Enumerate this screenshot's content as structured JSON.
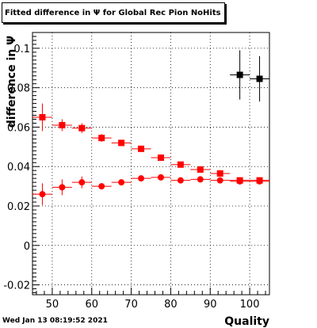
{
  "timestamp": "Wed Jan 13 08:19:52 2021",
  "chart_data": {
    "type": "scatter",
    "title": "Fitted difference in  Ψ  for Global Rec Pion NoHits",
    "xlabel": "Quality",
    "ylabel": "difference in Ψ",
    "xlim": [
      45,
      105
    ],
    "ylim": [
      -0.025,
      0.108
    ],
    "xticks": [
      50,
      60,
      70,
      80,
      90,
      100
    ],
    "yticks": [
      -0.02,
      0,
      0.02,
      0.04,
      0.06,
      0.08,
      0.1
    ],
    "ytick_labels": [
      "-0.02",
      "0",
      "0.02",
      "0.04",
      "0.06",
      "0.08",
      "0.1"
    ],
    "grid": true,
    "series": [
      {
        "marker": "square",
        "color": "#ff0000",
        "points": [
          {
            "x": 47.5,
            "y": 0.065,
            "yerr": 0.007
          },
          {
            "x": 52.5,
            "y": 0.061,
            "yerr": 0.003
          },
          {
            "x": 57.5,
            "y": 0.0595,
            "yerr": 0.0025
          },
          {
            "x": 62.5,
            "y": 0.0545,
            "yerr": 0.002
          },
          {
            "x": 67.5,
            "y": 0.052,
            "yerr": 0.0015
          },
          {
            "x": 72.5,
            "y": 0.049,
            "yerr": 0.0015
          },
          {
            "x": 77.5,
            "y": 0.0445,
            "yerr": 0.0015
          },
          {
            "x": 82.5,
            "y": 0.041,
            "yerr": 0.0015
          },
          {
            "x": 87.5,
            "y": 0.0385,
            "yerr": 0.0015
          },
          {
            "x": 92.5,
            "y": 0.0365,
            "yerr": 0.0015
          },
          {
            "x": 97.5,
            "y": 0.033,
            "yerr": 0.0015
          },
          {
            "x": 102.5,
            "y": 0.033,
            "yerr": 0.0015
          }
        ]
      },
      {
        "marker": "circle",
        "color": "#ff0000",
        "points": [
          {
            "x": 47.5,
            "y": 0.026,
            "yerr": 0.0055
          },
          {
            "x": 52.5,
            "y": 0.0295,
            "yerr": 0.004
          },
          {
            "x": 57.5,
            "y": 0.032,
            "yerr": 0.003
          },
          {
            "x": 62.5,
            "y": 0.03,
            "yerr": 0.0015
          },
          {
            "x": 67.5,
            "y": 0.032,
            "yerr": 0.001
          },
          {
            "x": 72.5,
            "y": 0.034,
            "yerr": 0.001
          },
          {
            "x": 77.5,
            "y": 0.0345,
            "yerr": 0.001
          },
          {
            "x": 82.5,
            "y": 0.033,
            "yerr": 0.001
          },
          {
            "x": 87.5,
            "y": 0.0335,
            "yerr": 0.001
          },
          {
            "x": 92.5,
            "y": 0.033,
            "yerr": 0.001
          },
          {
            "x": 97.5,
            "y": 0.0325,
            "yerr": 0.001
          },
          {
            "x": 102.5,
            "y": 0.0325,
            "yerr": 0.001
          }
        ]
      },
      {
        "marker": "square",
        "color": "#000000",
        "points": [
          {
            "x": 97.5,
            "y": 0.0865,
            "yerr": 0.0125
          },
          {
            "x": 102.5,
            "y": 0.0845,
            "yerr": 0.0115
          }
        ]
      }
    ]
  }
}
